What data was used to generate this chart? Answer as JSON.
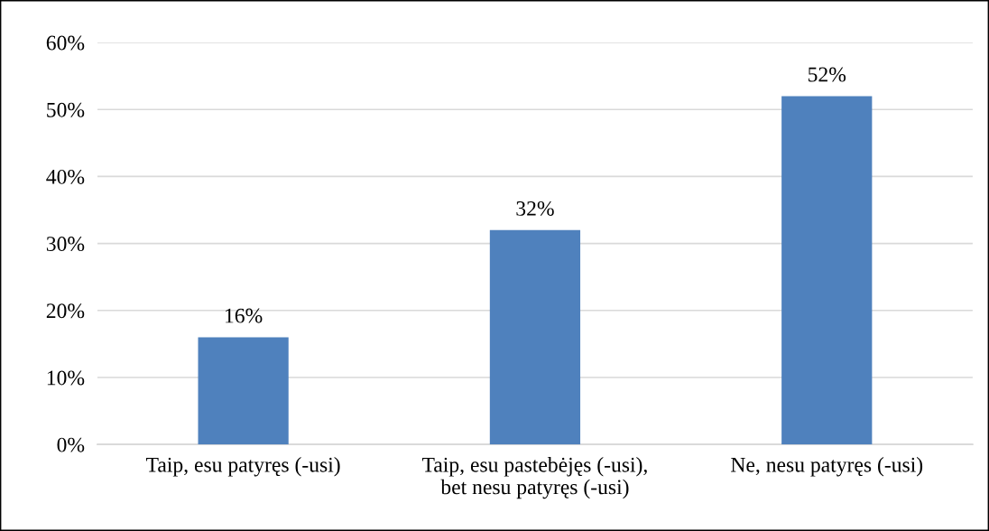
{
  "chart_data": {
    "type": "bar",
    "categories": [
      "Taip, esu patyręs (-usi)",
      "Taip, esu pastebėjęs (-usi),\nbet nesu patyręs (-usi)",
      "Ne, nesu patyręs (-usi)"
    ],
    "values": [
      16,
      32,
      52
    ],
    "value_labels": [
      "16%",
      "32%",
      "52%"
    ],
    "color": "#4f81bd",
    "ylim": [
      0,
      60
    ],
    "yticks": [
      {
        "value": 0,
        "label": "0%"
      },
      {
        "value": 10,
        "label": "10%"
      },
      {
        "value": 20,
        "label": "20%"
      },
      {
        "value": 30,
        "label": "30%"
      },
      {
        "value": 40,
        "label": "40%"
      },
      {
        "value": 50,
        "label": "50%"
      },
      {
        "value": 60,
        "label": "60%"
      }
    ],
    "grid": "y",
    "legend": false
  }
}
